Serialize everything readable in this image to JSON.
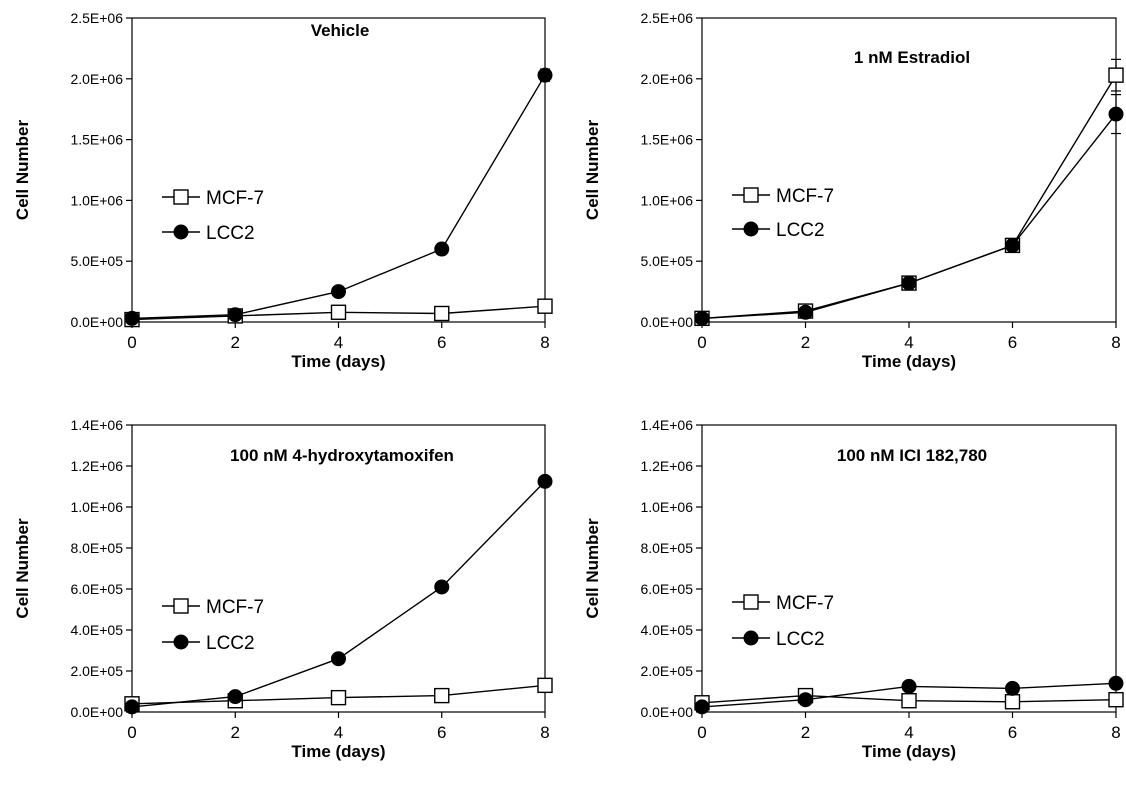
{
  "chart_data": [
    {
      "type": "line",
      "title": "Vehicle",
      "xlabel": "Time (days)",
      "ylabel": "Cell Number",
      "x": [
        0,
        2,
        4,
        6,
        8
      ],
      "xlim": [
        0,
        8
      ],
      "ylim": [
        0,
        2500000
      ],
      "xticks": [
        "0",
        "2",
        "4",
        "6",
        "8"
      ],
      "yticks": [
        "0.0E+00",
        "5.0E+05",
        "1.0E+06",
        "1.5E+06",
        "2.0E+06",
        "2.5E+06"
      ],
      "legend": "left-middle",
      "grid": false,
      "series": [
        {
          "name": "MCF-7",
          "marker": "open-square",
          "values": [
            20000,
            50000,
            80000,
            70000,
            130000
          ],
          "errors": [
            0,
            0,
            0,
            0,
            0
          ]
        },
        {
          "name": "LCC2",
          "marker": "filled-circle",
          "values": [
            30000,
            60000,
            250000,
            600000,
            2030000
          ],
          "errors": [
            0,
            0,
            0,
            0,
            50000
          ]
        }
      ]
    },
    {
      "type": "line",
      "title": "1 nM Estradiol",
      "xlabel": "Time (days)",
      "ylabel": "Cell Number",
      "x": [
        0,
        2,
        4,
        6,
        8
      ],
      "xlim": [
        0,
        8
      ],
      "ylim": [
        0,
        2500000
      ],
      "xticks": [
        "0",
        "2",
        "4",
        "6",
        "8"
      ],
      "yticks": [
        "0.0E+00",
        "5.0E+05",
        "1.0E+06",
        "1.5E+06",
        "2.0E+06",
        "2.5E+06"
      ],
      "legend": "left-middle",
      "grid": false,
      "series": [
        {
          "name": "MCF-7",
          "marker": "open-square",
          "values": [
            30000,
            90000,
            320000,
            630000,
            2030000
          ],
          "errors": [
            0,
            0,
            0,
            0,
            130000
          ]
        },
        {
          "name": "LCC2",
          "marker": "filled-circle",
          "values": [
            30000,
            80000,
            320000,
            630000,
            1710000
          ],
          "errors": [
            0,
            0,
            0,
            0,
            160000
          ]
        }
      ]
    },
    {
      "type": "line",
      "title": "100 nM 4-hydroxytamoxifen",
      "xlabel": "Time (days)",
      "ylabel": "Cell Number",
      "x": [
        0,
        2,
        4,
        6,
        8
      ],
      "xlim": [
        0,
        8
      ],
      "ylim": [
        0,
        1400000
      ],
      "xticks": [
        "0",
        "2",
        "4",
        "6",
        "8"
      ],
      "yticks": [
        "0.0E+00",
        "2.0E+05",
        "4.0E+05",
        "6.0E+05",
        "8.0E+05",
        "1.0E+06",
        "1.2E+06",
        "1.4E+06"
      ],
      "legend": "left-middle",
      "grid": false,
      "series": [
        {
          "name": "MCF-7",
          "marker": "open-square",
          "values": [
            40000,
            55000,
            70000,
            80000,
            130000
          ],
          "errors": [
            0,
            0,
            0,
            0,
            0
          ]
        },
        {
          "name": "LCC2",
          "marker": "filled-circle",
          "values": [
            25000,
            75000,
            260000,
            610000,
            1125000
          ],
          "errors": [
            0,
            0,
            0,
            0,
            20000
          ]
        }
      ]
    },
    {
      "type": "line",
      "title": "100 nM ICI 182,780",
      "xlabel": "Time (days)",
      "ylabel": "Cell Number",
      "x": [
        0,
        2,
        4,
        6,
        8
      ],
      "xlim": [
        0,
        8
      ],
      "ylim": [
        0,
        1400000
      ],
      "xticks": [
        "0",
        "2",
        "4",
        "6",
        "8"
      ],
      "yticks": [
        "0.0E+00",
        "2.0E+05",
        "4.0E+05",
        "6.0E+05",
        "8.0E+05",
        "1.0E+06",
        "1.2E+06",
        "1.4E+06"
      ],
      "legend": "left-middle",
      "grid": false,
      "series": [
        {
          "name": "MCF-7",
          "marker": "open-square",
          "values": [
            45000,
            80000,
            55000,
            50000,
            60000
          ],
          "errors": [
            0,
            0,
            0,
            0,
            0
          ]
        },
        {
          "name": "LCC2",
          "marker": "filled-circle",
          "values": [
            25000,
            60000,
            125000,
            115000,
            140000
          ],
          "errors": [
            0,
            0,
            0,
            0,
            0
          ]
        }
      ]
    }
  ]
}
